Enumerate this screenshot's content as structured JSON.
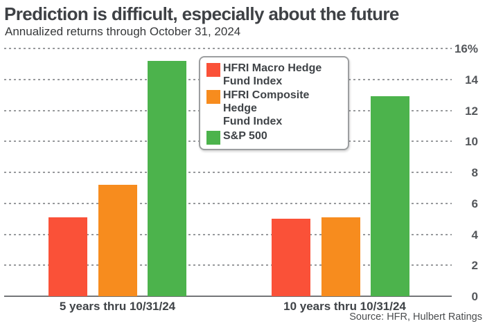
{
  "header": {
    "title": "Prediction is difficult, especially about the future",
    "subtitle": "Annualized returns through October 31, 2024"
  },
  "footer": {
    "source": "Source: HFR, Hulbert Ratings"
  },
  "colors": {
    "hfri_macro": "#fa5138",
    "hfri_composite": "#f78c1e",
    "sp500": "#4cb34c",
    "grid": "#97999c",
    "baseline": "#737578",
    "axis_text": "#54575b",
    "label_text": "#3f4347"
  },
  "chart_data": {
    "type": "bar",
    "title": "Prediction is difficult, especially about the future",
    "subtitle": "Annualized returns through October 31, 2024",
    "categories": [
      "5 years thru 10/31/24",
      "10 years thru 10/31/24"
    ],
    "series": [
      {
        "name": "HFRI Macro Hedge Fund Index",
        "color": "#fa5138",
        "values": [
          5.1,
          5.0
        ]
      },
      {
        "name": "HFRI Composite Hedge Fund Index",
        "color": "#f78c1e",
        "values": [
          7.2,
          5.1
        ]
      },
      {
        "name": "S&P 500",
        "color": "#4cb34c",
        "values": [
          15.2,
          12.9
        ]
      }
    ],
    "ylim": [
      0,
      16
    ],
    "yticks": [
      {
        "value": 16,
        "label": "16%"
      },
      {
        "value": 14,
        "label": "14"
      },
      {
        "value": 12,
        "label": "12"
      },
      {
        "value": 10,
        "label": "10"
      },
      {
        "value": 8,
        "label": "8"
      },
      {
        "value": 6,
        "label": "6"
      },
      {
        "value": 4,
        "label": "4"
      },
      {
        "value": 2,
        "label": "2"
      },
      {
        "value": 0,
        "label": "0"
      }
    ],
    "xlabel": "",
    "ylabel": "",
    "grid": "horizontal-dotted",
    "legend_position": "inside-top-center",
    "yaxis_side": "right"
  }
}
